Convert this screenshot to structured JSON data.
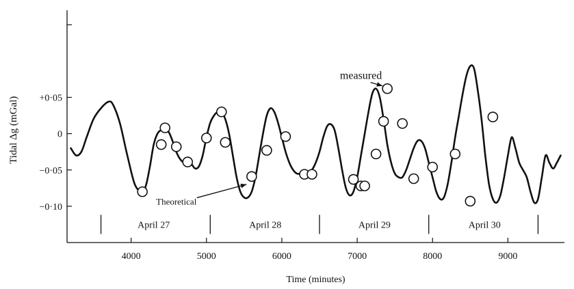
{
  "chart_data": {
    "type": "line",
    "title": "",
    "xlabel": "Time (minutes)",
    "ylabel": "Tidal Δg (mGal)",
    "xlim": [
      3150,
      9750
    ],
    "ylim": [
      -0.15,
      0.17
    ],
    "x_ticks": [
      {
        "value": 4000,
        "label": "4000"
      },
      {
        "value": 5000,
        "label": "5000"
      },
      {
        "value": 6000,
        "label": "6000"
      },
      {
        "value": 7000,
        "label": "7000"
      },
      {
        "value": 8000,
        "label": "8000"
      },
      {
        "value": 9000,
        "label": "9000"
      }
    ],
    "y_ticks": [
      {
        "value": 0.05,
        "label": "+0·05"
      },
      {
        "value": 0,
        "label": "0"
      },
      {
        "value": -0.05,
        "label": "−0·05"
      },
      {
        "value": -0.1,
        "label": "−0·10"
      }
    ],
    "y_tick_unlabeled": [
      0.15
    ],
    "day_band": {
      "y_value": -0.125,
      "dividers": [
        3600,
        5050,
        6500,
        7950,
        9400
      ],
      "labels": [
        {
          "x": 4300,
          "text": "April 27"
        },
        {
          "x": 5780,
          "text": "April 28"
        },
        {
          "x": 7230,
          "text": "April 29"
        },
        {
          "x": 8690,
          "text": "April 30"
        }
      ]
    },
    "series": [
      {
        "name": "Theoretical",
        "style": "line",
        "x": [
          3200,
          3270,
          3340,
          3410,
          3500,
          3600,
          3700,
          3760,
          3850,
          3950,
          4050,
          4150,
          4200,
          4250,
          4300,
          4350,
          4400,
          4450,
          4500,
          4550,
          4600,
          4650,
          4700,
          4750,
          4800,
          4850,
          4900,
          4950,
          5000,
          5050,
          5100,
          5150,
          5200,
          5250,
          5300,
          5350,
          5400,
          5450,
          5500,
          5550,
          5600,
          5650,
          5700,
          5750,
          5800,
          5850,
          5900,
          5950,
          6000,
          6050,
          6100,
          6150,
          6200,
          6250,
          6300,
          6350,
          6400,
          6450,
          6500,
          6550,
          6600,
          6650,
          6700,
          6750,
          6800,
          6850,
          6900,
          6950,
          7000,
          7050,
          7100,
          7150,
          7200,
          7250,
          7300,
          7350,
          7400,
          7450,
          7500,
          7550,
          7600,
          7650,
          7700,
          7750,
          7800,
          7850,
          7900,
          7950,
          8000,
          8050,
          8100,
          8150,
          8200,
          8250,
          8300,
          8350,
          8400,
          8450,
          8500,
          8550,
          8600,
          8650,
          8700,
          8750,
          8800,
          8850,
          8900,
          8950,
          9000,
          9050,
          9100,
          9150,
          9200,
          9250,
          9300,
          9350,
          9400,
          9450,
          9500,
          9550,
          9600,
          9650,
          9700
        ],
        "y": [
          -0.02,
          -0.03,
          -0.025,
          -0.005,
          0.02,
          0.035,
          0.044,
          0.04,
          0.015,
          -0.03,
          -0.07,
          -0.08,
          -0.07,
          -0.045,
          -0.015,
          0.0,
          0.005,
          0.005,
          0.002,
          -0.01,
          -0.025,
          -0.035,
          -0.04,
          -0.04,
          -0.042,
          -0.048,
          -0.045,
          -0.03,
          -0.005,
          0.015,
          0.025,
          0.03,
          0.03,
          0.02,
          0.0,
          -0.03,
          -0.06,
          -0.08,
          -0.088,
          -0.088,
          -0.08,
          -0.06,
          -0.03,
          0.0,
          0.025,
          0.035,
          0.03,
          0.015,
          -0.005,
          -0.025,
          -0.04,
          -0.05,
          -0.055,
          -0.055,
          -0.055,
          -0.055,
          -0.05,
          -0.04,
          -0.025,
          -0.005,
          0.01,
          0.013,
          0.005,
          -0.02,
          -0.05,
          -0.075,
          -0.085,
          -0.08,
          -0.06,
          -0.03,
          0.0,
          0.03,
          0.055,
          0.062,
          0.05,
          0.02,
          -0.015,
          -0.04,
          -0.055,
          -0.06,
          -0.06,
          -0.05,
          -0.035,
          -0.02,
          -0.01,
          -0.01,
          -0.02,
          -0.04,
          -0.06,
          -0.08,
          -0.09,
          -0.088,
          -0.07,
          -0.04,
          -0.005,
          0.025,
          0.055,
          0.08,
          0.093,
          0.09,
          0.06,
          0.02,
          -0.03,
          -0.07,
          -0.09,
          -0.095,
          -0.085,
          -0.06,
          -0.03,
          -0.005,
          -0.02,
          -0.04,
          -0.05,
          -0.06,
          -0.08,
          -0.095,
          -0.09,
          -0.06,
          -0.03,
          -0.04,
          -0.048,
          -0.04,
          -0.03
        ]
      },
      {
        "name": "measured",
        "style": "scatter",
        "x": [
          4150,
          4400,
          4450,
          4600,
          4750,
          5000,
          5200,
          5250,
          5600,
          5800,
          6050,
          6300,
          6400,
          6950,
          7050,
          7100,
          7250,
          7350,
          7400,
          7600,
          7750,
          8000,
          8300,
          8500,
          8800
        ],
        "y": [
          -0.08,
          -0.015,
          0.008,
          -0.018,
          -0.039,
          -0.006,
          0.03,
          -0.012,
          -0.059,
          -0.023,
          -0.004,
          -0.056,
          -0.056,
          -0.063,
          -0.072,
          -0.072,
          -0.028,
          0.017,
          0.062,
          0.014,
          -0.062,
          -0.046,
          -0.028,
          -0.093,
          0.023
        ]
      }
    ],
    "annotations": [
      {
        "text": "measured",
        "x": 7050,
        "y": 0.08,
        "arrow_to": {
          "x": 7400,
          "y": 0.062
        }
      },
      {
        "text": "Theoretical",
        "x": 4600,
        "y": -0.093,
        "arrow_to": {
          "x": 5550,
          "y": -0.068
        }
      }
    ]
  }
}
